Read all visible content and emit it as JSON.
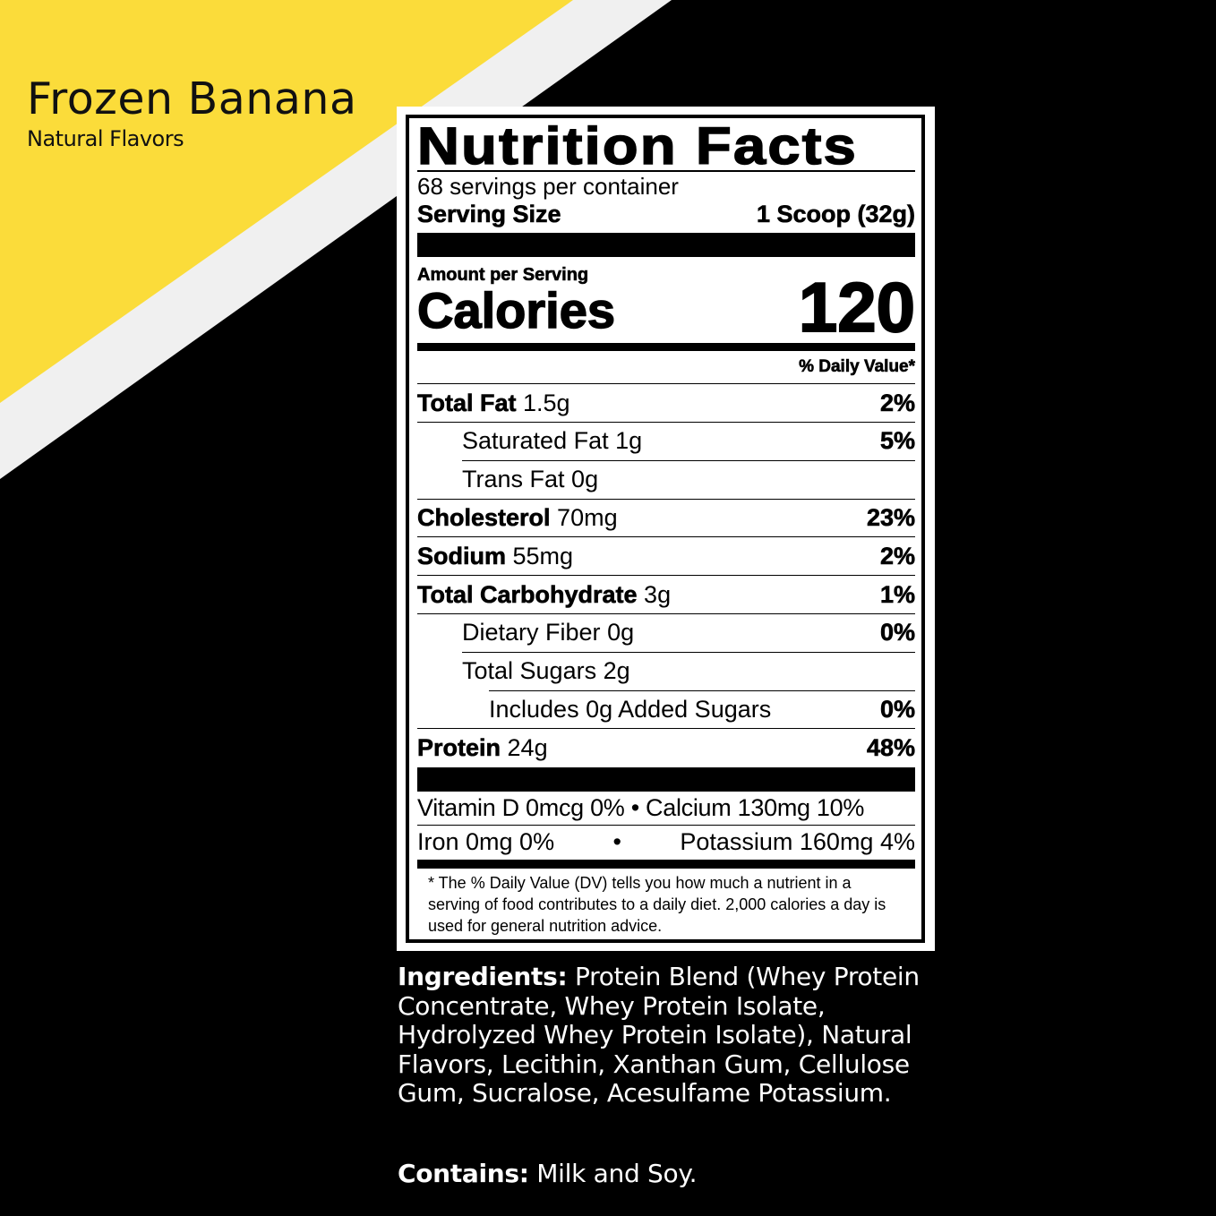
{
  "product": {
    "flavor": "Frozen Banana",
    "subtitle": "Natural Flavors"
  },
  "colors": {
    "yellow": "#fbdc3a",
    "stripe": "#f0f0f0",
    "background": "#000000"
  },
  "label": {
    "title": "Nutrition Facts",
    "servings": "68 servings per container",
    "serving_size_label": "Serving Size",
    "serving_size_value": "1 Scoop (32g)",
    "amount_per_serving": "Amount per Serving",
    "calories_label": "Calories",
    "calories_value": "120",
    "dv_header": "% Daily Value*",
    "rows": [
      {
        "name": "Total Fat",
        "amount": "1.5g",
        "dv": "2%",
        "bold": true,
        "indent": 0
      },
      {
        "name": "Saturated Fat",
        "amount": "1g",
        "dv": "5%",
        "bold": false,
        "indent": 1
      },
      {
        "name": "Trans Fat",
        "amount": "0g",
        "dv": "",
        "bold": false,
        "indent": 1
      },
      {
        "name": "Cholesterol",
        "amount": "70mg",
        "dv": "23%",
        "bold": true,
        "indent": 0
      },
      {
        "name": "Sodium",
        "amount": "55mg",
        "dv": "2%",
        "bold": true,
        "indent": 0
      },
      {
        "name": "Total Carbohydrate",
        "amount": "3g",
        "dv": "1%",
        "bold": true,
        "indent": 0
      },
      {
        "name": "Dietary Fiber",
        "amount": "0g",
        "dv": "0%",
        "bold": false,
        "indent": 1
      },
      {
        "name": "Total Sugars",
        "amount": "2g",
        "dv": "",
        "bold": false,
        "indent": 1
      },
      {
        "name": "Includes 0g Added Sugars",
        "amount": "",
        "dv": "0%",
        "bold": false,
        "indent": 2
      },
      {
        "name": "Protein",
        "amount": "24g",
        "dv": "48%",
        "bold": true,
        "indent": 0
      }
    ],
    "vitamins_line1": "Vitamin D 0mcg 0% • Calcium 130mg 10%",
    "vitamins_line2_left": "Iron 0mg 0%",
    "vitamins_line2_dot": "•",
    "vitamins_line2_right": "Potassium 160mg 4%",
    "footnote": "* The % Daily Value (DV) tells you how much a nutrient in a serving of food contributes to a daily diet. 2,000 calories a day is used for general nutrition advice."
  },
  "ingredients": {
    "label": "Ingredients:",
    "text": " Protein Blend (Whey Protein Concentrate, Whey Protein Isolate, Hydrolyzed Whey Protein Isolate), Natural Flavors, Lecithin, Xanthan Gum, Cellulose Gum, Sucralose, Acesulfame Potassium."
  },
  "contains": {
    "label": "Contains:",
    "text": " Milk and Soy."
  }
}
